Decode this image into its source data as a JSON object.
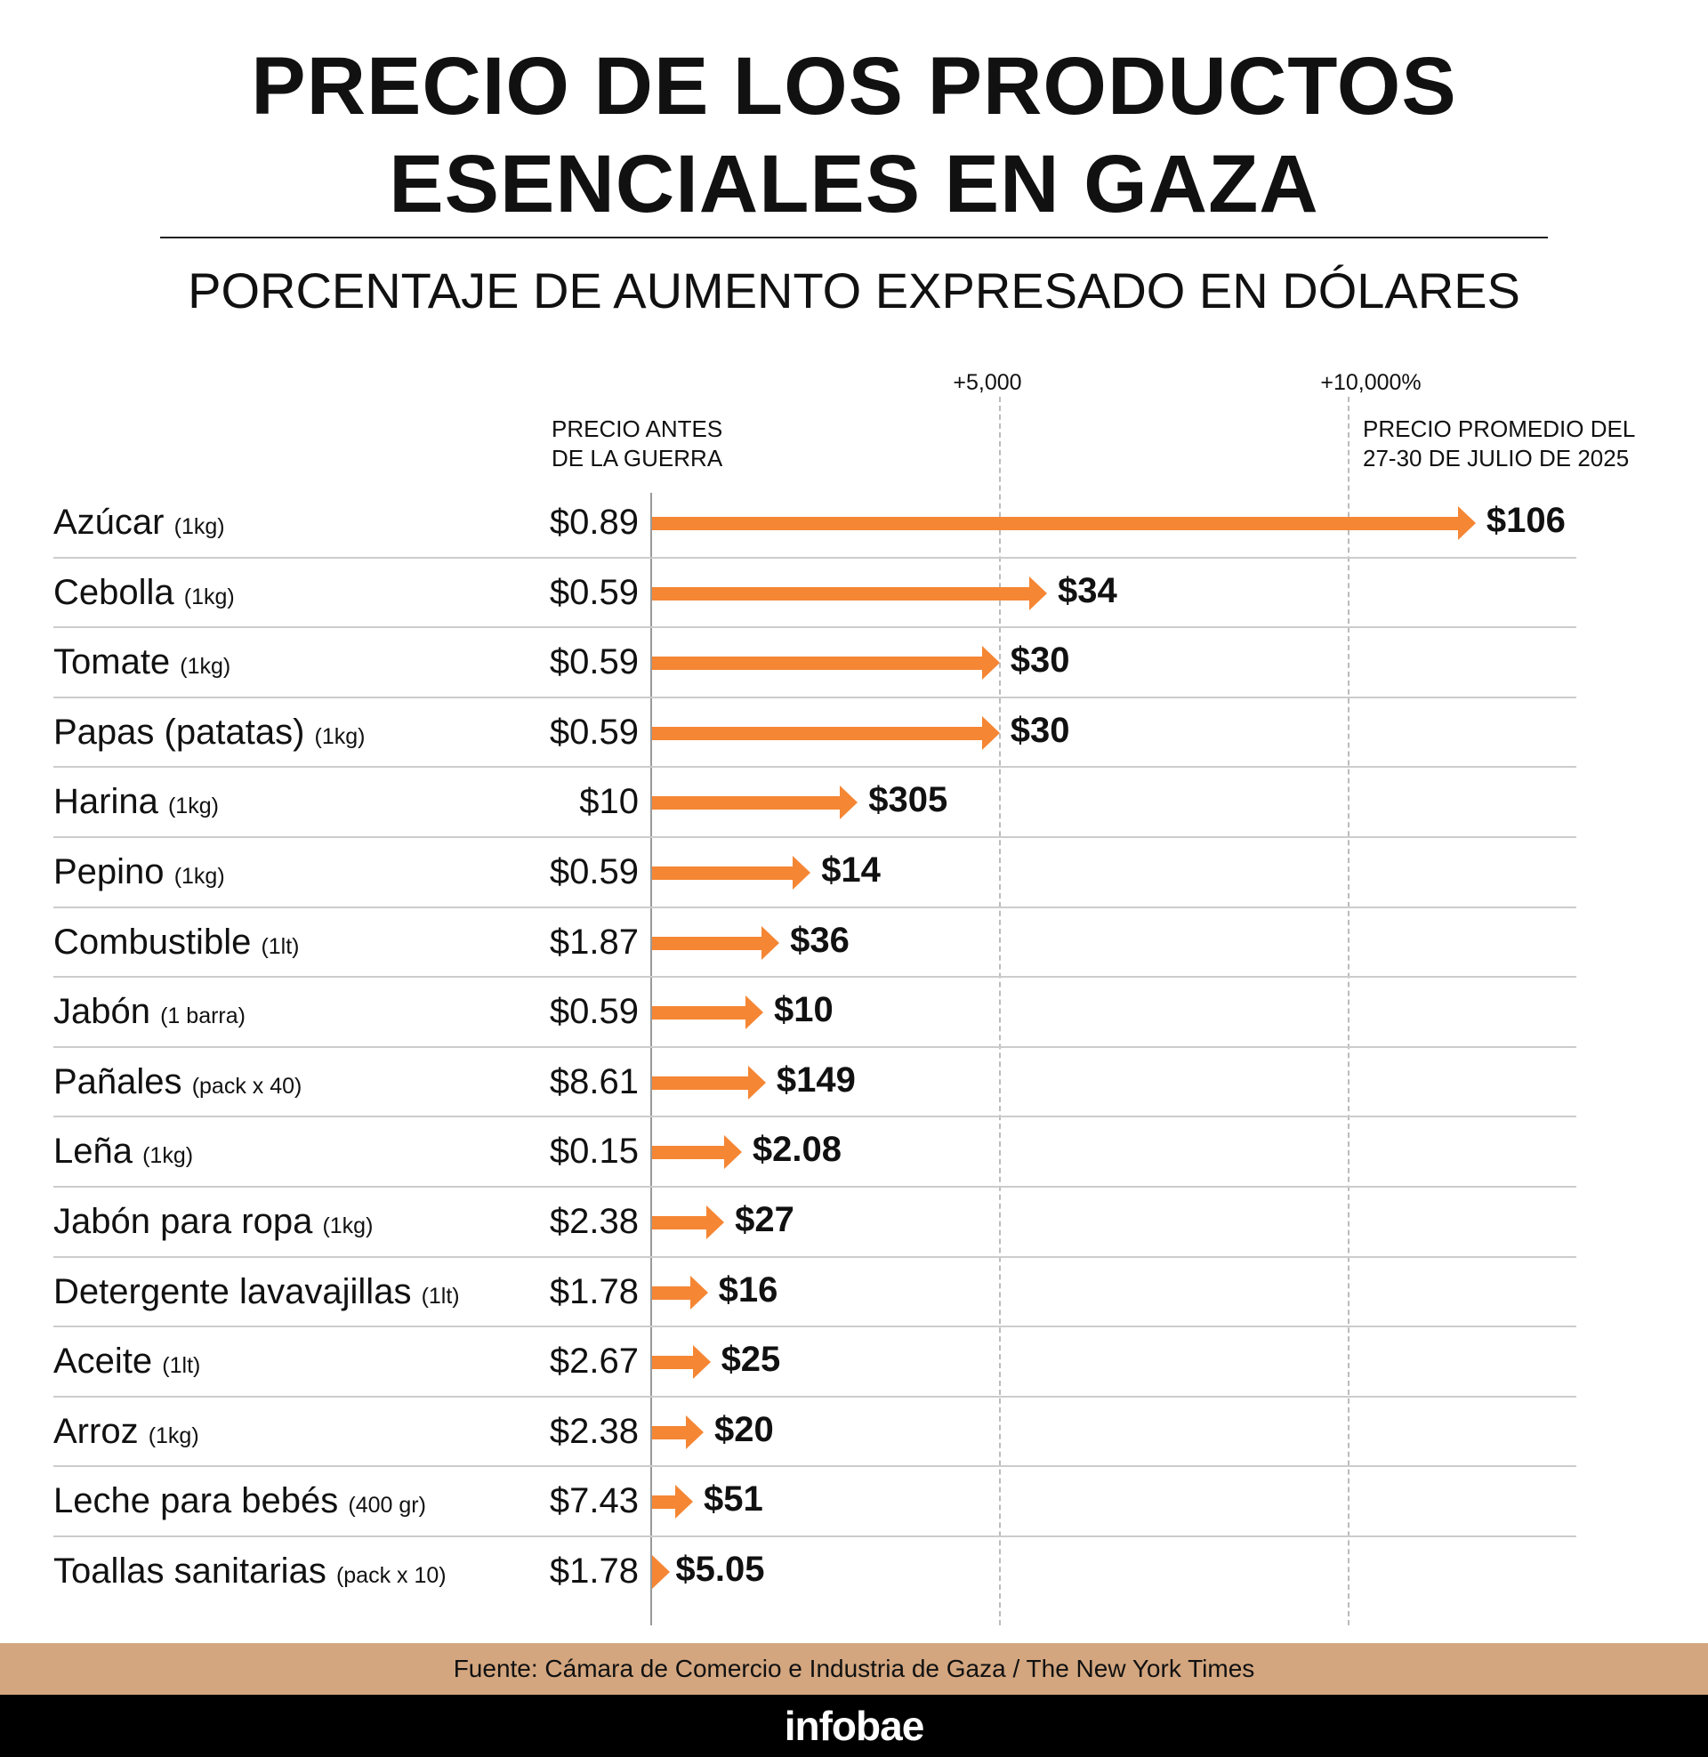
{
  "title_line1": "PRECIO DE LOS PRODUCTOS",
  "title_line2": "ESENCIALES EN GAZA",
  "subtitle": "PORCENTAJE DE AUMENTO EXPRESADO EN DÓLARES",
  "colors": {
    "bar": "#f58634",
    "footer": "#d3a67f"
  },
  "chart_data": {
    "type": "bar",
    "orientation": "horizontal",
    "title": "PRECIO DE LOS PRODUCTOS ESENCIALES EN GAZA",
    "subtitle": "PORCENTAJE DE AUMENTO EXPRESADO EN DÓLARES",
    "x_ticks": [
      "+5,000",
      "+10,000%"
    ],
    "x_tick_values": [
      5000,
      10000
    ],
    "xlim": [
      0,
      13000
    ],
    "col_before": "PRECIO ANTES DE LA GUERRA",
    "col_before_l1": "PRECIO ANTES",
    "col_before_l2": "DE LA GUERRA",
    "col_after_l1": "PRECIO PROMEDIO DEL",
    "col_after_l2": "27-30 DE JULIO DE 2025",
    "rows": [
      {
        "name": "Azúcar",
        "unit": "(1kg)",
        "before": "$0.89",
        "after": "$106",
        "before_v": 0.89,
        "after_v": 106
      },
      {
        "name": "Cebolla",
        "unit": "(1kg)",
        "before": "$0.59",
        "after": "$34",
        "before_v": 0.59,
        "after_v": 34
      },
      {
        "name": "Tomate",
        "unit": "(1kg)",
        "before": "$0.59",
        "after": "$30",
        "before_v": 0.59,
        "after_v": 30
      },
      {
        "name": "Papas (patatas)",
        "unit": "(1kg)",
        "before": "$0.59",
        "after": "$30",
        "before_v": 0.59,
        "after_v": 30
      },
      {
        "name": "Harina",
        "unit": "(1kg)",
        "before": "$10",
        "after": "$305",
        "before_v": 10,
        "after_v": 305
      },
      {
        "name": "Pepino",
        "unit": "(1kg)",
        "before": "$0.59",
        "after": "$14",
        "before_v": 0.59,
        "after_v": 14
      },
      {
        "name": "Combustible",
        "unit": "(1lt)",
        "before": "$1.87",
        "after": "$36",
        "before_v": 1.87,
        "after_v": 36
      },
      {
        "name": "Jabón",
        "unit": "(1 barra)",
        "before": "$0.59",
        "after": "$10",
        "before_v": 0.59,
        "after_v": 10
      },
      {
        "name": "Pañales",
        "unit": "(pack x 40)",
        "before": "$8.61",
        "after": "$149",
        "before_v": 8.61,
        "after_v": 149
      },
      {
        "name": "Leña",
        "unit": "(1kg)",
        "before": "$0.15",
        "after": "$2.08",
        "before_v": 0.15,
        "after_v": 2.08
      },
      {
        "name": "Jabón para ropa",
        "unit": "(1kg)",
        "before": "$2.38",
        "after": "$27",
        "before_v": 2.38,
        "after_v": 27
      },
      {
        "name": "Detergente lavavajillas",
        "unit": "(1lt)",
        "before": "$1.78",
        "after": "$16",
        "before_v": 1.78,
        "after_v": 16
      },
      {
        "name": "Aceite",
        "unit": "(1lt)",
        "before": "$2.67",
        "after": "$25",
        "before_v": 2.67,
        "after_v": 25
      },
      {
        "name": "Arroz",
        "unit": "(1kg)",
        "before": "$2.38",
        "after": "$20",
        "before_v": 2.38,
        "after_v": 20
      },
      {
        "name": "Leche para bebés",
        "unit": "(400 gr)",
        "before": "$7.43",
        "after": "$51",
        "before_v": 7.43,
        "after_v": 51
      },
      {
        "name": "Toallas sanitarias",
        "unit": "(pack x 10)",
        "before": "$1.78",
        "after": "$5.05",
        "before_v": 1.78,
        "after_v": 5.05
      }
    ]
  },
  "footer": {
    "source": "Fuente: Cámara de Comercio e Industria de Gaza / The New York Times",
    "brand": "infobae"
  }
}
